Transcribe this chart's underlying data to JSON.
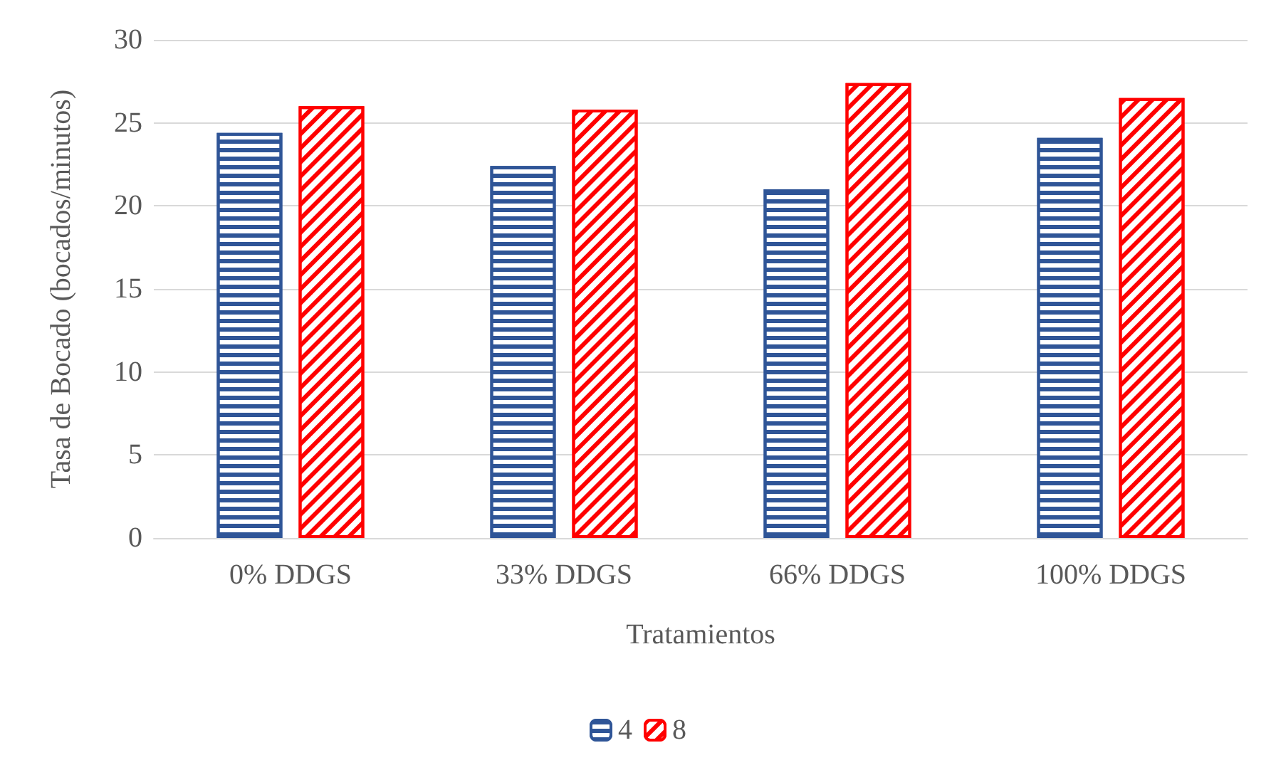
{
  "chart_data": {
    "type": "bar",
    "xlabel": "Tratamientos",
    "ylabel": "Tasa de Bocado (bocados/minutos)",
    "categories": [
      "0% DDGS",
      "33% DDGS",
      "66% DDGS",
      "100% DDGS"
    ],
    "series": [
      {
        "name": "4",
        "color": "#2f5597",
        "values": [
          24.4,
          22.4,
          21.0,
          24.1
        ]
      },
      {
        "name": "8",
        "color": "#ff0000",
        "values": [
          26.0,
          25.8,
          27.4,
          26.5
        ]
      }
    ],
    "ylim": [
      0,
      30
    ],
    "yticks": [
      0,
      5,
      10,
      15,
      20,
      25,
      30
    ],
    "grid": "y",
    "legend": "bottom"
  }
}
